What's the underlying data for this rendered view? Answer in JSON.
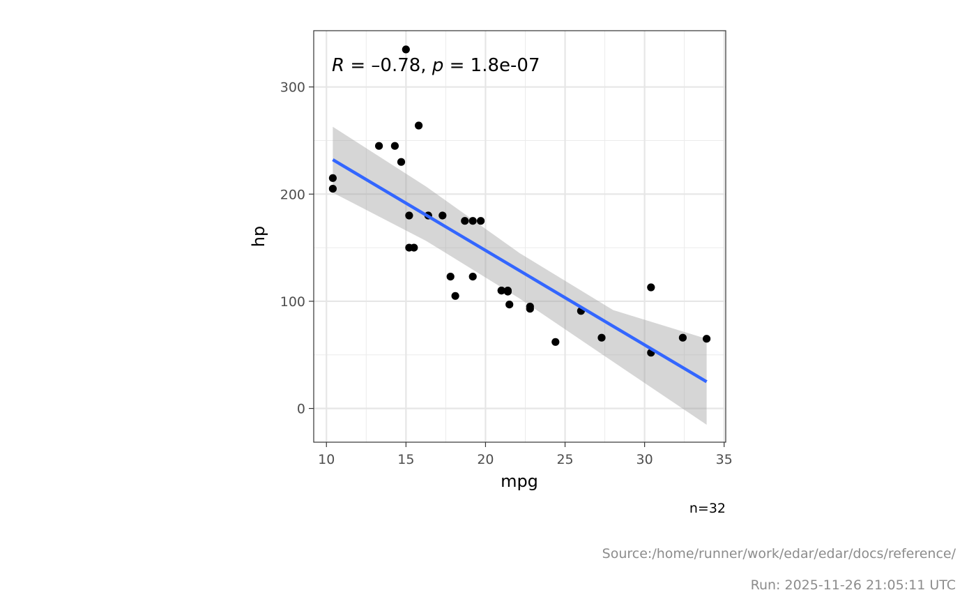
{
  "chart_data": {
    "type": "scatter",
    "title": "",
    "xlabel": "mpg",
    "ylabel": "hp",
    "xlim": [
      9.2,
      35.1
    ],
    "ylim": [
      -31.5,
      352.5
    ],
    "x_ticks": [
      10,
      15,
      20,
      25,
      30,
      35
    ],
    "y_ticks": [
      0,
      100,
      200,
      300
    ],
    "x_tick_labels": [
      "10",
      "15",
      "20",
      "25",
      "30",
      "35"
    ],
    "y_tick_labels": [
      "0",
      "100",
      "200",
      "300"
    ],
    "grid": true,
    "theme": "bw",
    "points": {
      "x": [
        21.0,
        21.0,
        22.8,
        21.4,
        18.7,
        18.1,
        14.3,
        24.4,
        22.8,
        19.2,
        17.8,
        16.4,
        17.3,
        15.2,
        10.4,
        10.4,
        14.7,
        32.4,
        30.4,
        33.9,
        21.5,
        15.5,
        15.2,
        13.3,
        19.2,
        27.3,
        26.0,
        30.4,
        15.8,
        19.7,
        15.0,
        21.4
      ],
      "y": [
        110,
        110,
        93,
        110,
        175,
        105,
        245,
        62,
        95,
        123,
        123,
        180,
        180,
        180,
        205,
        215,
        230,
        66,
        52,
        65,
        97,
        150,
        150,
        245,
        175,
        66,
        91,
        113,
        264,
        175,
        335,
        109
      ]
    },
    "fit_line": {
      "method": "lm",
      "x": [
        10.4,
        33.9
      ],
      "y": [
        232.1,
        24.9
      ],
      "color": "#3366FF"
    },
    "confidence_band": {
      "level": 0.95,
      "x": [
        10.4,
        16.275,
        22.15,
        28.025,
        33.9
      ],
      "lower": [
        201.4,
        156.3,
        102.5,
        43.5,
        -15.2
      ],
      "upper": [
        262.8,
        207.0,
        144.9,
        91.8,
        65.0
      ],
      "color": "#999999"
    },
    "annotation": {
      "r_symbol": "R",
      "eq1": " = ",
      "r_value": "–0.78,",
      "p_symbol": "p",
      "eq2": " = ",
      "p_value": "1.8e-07"
    },
    "caption": "n=32"
  },
  "footer": {
    "source": "Source:/home/runner/work/edar/edar/docs/reference/",
    "run": "Run: 2025-11-26 21:05:11 UTC"
  }
}
